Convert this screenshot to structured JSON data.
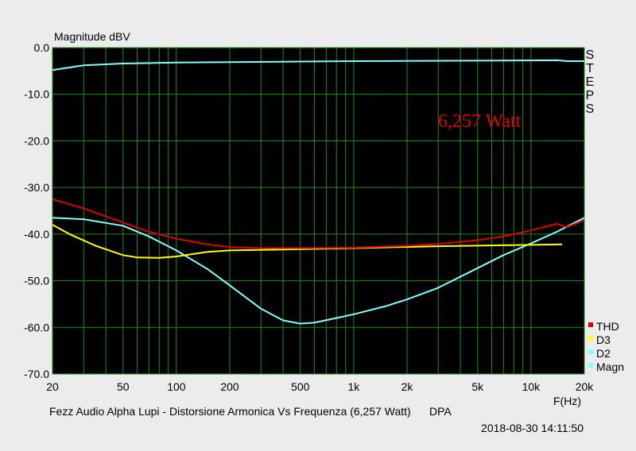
{
  "chart_data": {
    "type": "line",
    "ylabel": "Magnitude dBV",
    "xlabel": "F(Hz)",
    "x_scale": "log",
    "xlim": [
      20,
      20000
    ],
    "ylim": [
      -70,
      0
    ],
    "grid": true,
    "legend_position": "bottom-right",
    "y_ticks": [
      "0.0",
      "-10.0",
      "-20.0",
      "-30.0",
      "-40.0",
      "-50.0",
      "-60.0",
      "-70.0"
    ],
    "x_ticks": [
      {
        "value": 20,
        "label": "20"
      },
      {
        "value": 50,
        "label": "50"
      },
      {
        "value": 100,
        "label": "100"
      },
      {
        "value": 200,
        "label": "200"
      },
      {
        "value": 500,
        "label": "500"
      },
      {
        "value": 1000,
        "label": "1k"
      },
      {
        "value": 2000,
        "label": "2k"
      },
      {
        "value": 5000,
        "label": "5k"
      },
      {
        "value": 10000,
        "label": "10k"
      },
      {
        "value": 20000,
        "label": "20k"
      }
    ],
    "side_label": "STEPS",
    "annotation": "6,257 Watt",
    "caption": "Fezz Audio Alpha Lupi - Distorsione Armonica Vs Frequenza (6,257 Watt)      DPA",
    "timestamp": "2018-08-30 14:11:50",
    "series": [
      {
        "name": "THD",
        "color": "#e00000",
        "points": [
          [
            20,
            -32.5
          ],
          [
            30,
            -34.5
          ],
          [
            50,
            -37.5
          ],
          [
            70,
            -39.5
          ],
          [
            100,
            -41
          ],
          [
            150,
            -42.2
          ],
          [
            200,
            -42.8
          ],
          [
            300,
            -43
          ],
          [
            500,
            -43
          ],
          [
            1000,
            -42.9
          ],
          [
            2000,
            -42.5
          ],
          [
            3000,
            -42.1
          ],
          [
            5000,
            -41.3
          ],
          [
            7000,
            -40.5
          ],
          [
            10000,
            -39.2
          ],
          [
            14000,
            -37.8
          ],
          [
            16000,
            -38.5
          ],
          [
            20000,
            -37
          ]
        ]
      },
      {
        "name": "D3",
        "color": "#ffff00",
        "points": [
          [
            20,
            -38
          ],
          [
            25,
            -40
          ],
          [
            35,
            -42.5
          ],
          [
            50,
            -44.5
          ],
          [
            60,
            -45
          ],
          [
            80,
            -45.1
          ],
          [
            100,
            -44.8
          ],
          [
            150,
            -43.8
          ],
          [
            200,
            -43.5
          ],
          [
            400,
            -43.3
          ],
          [
            1000,
            -43
          ],
          [
            3000,
            -42.6
          ],
          [
            7000,
            -42.4
          ],
          [
            15000,
            -42.2
          ]
        ]
      },
      {
        "name": "D2",
        "color": "#80ffff",
        "points": [
          [
            20,
            -36.5
          ],
          [
            30,
            -36.8
          ],
          [
            50,
            -38.2
          ],
          [
            70,
            -40.5
          ],
          [
            100,
            -43.5
          ],
          [
            150,
            -47.5
          ],
          [
            200,
            -51
          ],
          [
            300,
            -56
          ],
          [
            400,
            -58.5
          ],
          [
            500,
            -59.2
          ],
          [
            600,
            -59
          ],
          [
            800,
            -58
          ],
          [
            1000,
            -57.2
          ],
          [
            1500,
            -55.5
          ],
          [
            2000,
            -54
          ],
          [
            3000,
            -51.5
          ],
          [
            5000,
            -47.3
          ],
          [
            7000,
            -44.5
          ],
          [
            10000,
            -42
          ],
          [
            14000,
            -39.5
          ],
          [
            20000,
            -36.5
          ]
        ]
      },
      {
        "name": "Magn",
        "color": "#80ffff",
        "points": [
          [
            20,
            -4.8
          ],
          [
            30,
            -3.8
          ],
          [
            50,
            -3.4
          ],
          [
            100,
            -3.2
          ],
          [
            200,
            -3.1
          ],
          [
            1000,
            -2.9
          ],
          [
            5000,
            -2.8
          ],
          [
            14000,
            -2.7
          ],
          [
            16000,
            -2.9
          ],
          [
            20000,
            -2.9
          ]
        ]
      }
    ]
  }
}
